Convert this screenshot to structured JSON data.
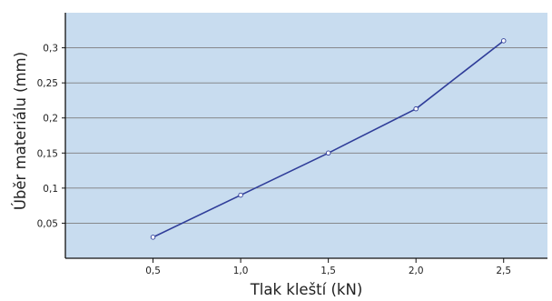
{
  "chart_data": {
    "type": "line",
    "xlabel": "Tlak kleští (kN)",
    "ylabel": "Úběr materiálu (mm)",
    "x_ticks": [
      "0,5",
      "1,0",
      "1,5",
      "2,0",
      "2,5"
    ],
    "y_ticks": [
      "0,05",
      "0,1",
      "0,15",
      "0,2",
      "0,25",
      "0,3"
    ],
    "x_tick_values": [
      0.5,
      1.0,
      1.5,
      2.0,
      2.5
    ],
    "y_tick_values": [
      0.05,
      0.1,
      0.15,
      0.2,
      0.25,
      0.3
    ],
    "xlim": [
      0,
      2.75
    ],
    "ylim": [
      0,
      0.35
    ],
    "grid": "horizontal",
    "series": [
      {
        "x": [
          0.5,
          1.0,
          1.5,
          2.0,
          2.5
        ],
        "y": [
          0.03,
          0.09,
          0.15,
          0.213,
          0.31
        ]
      }
    ],
    "colors": {
      "plot_background": "#c8dcef",
      "line": "#2f3d99",
      "grid": "#7d7d7d",
      "axis": "#111111",
      "marker_fill": "#ffffff"
    }
  }
}
